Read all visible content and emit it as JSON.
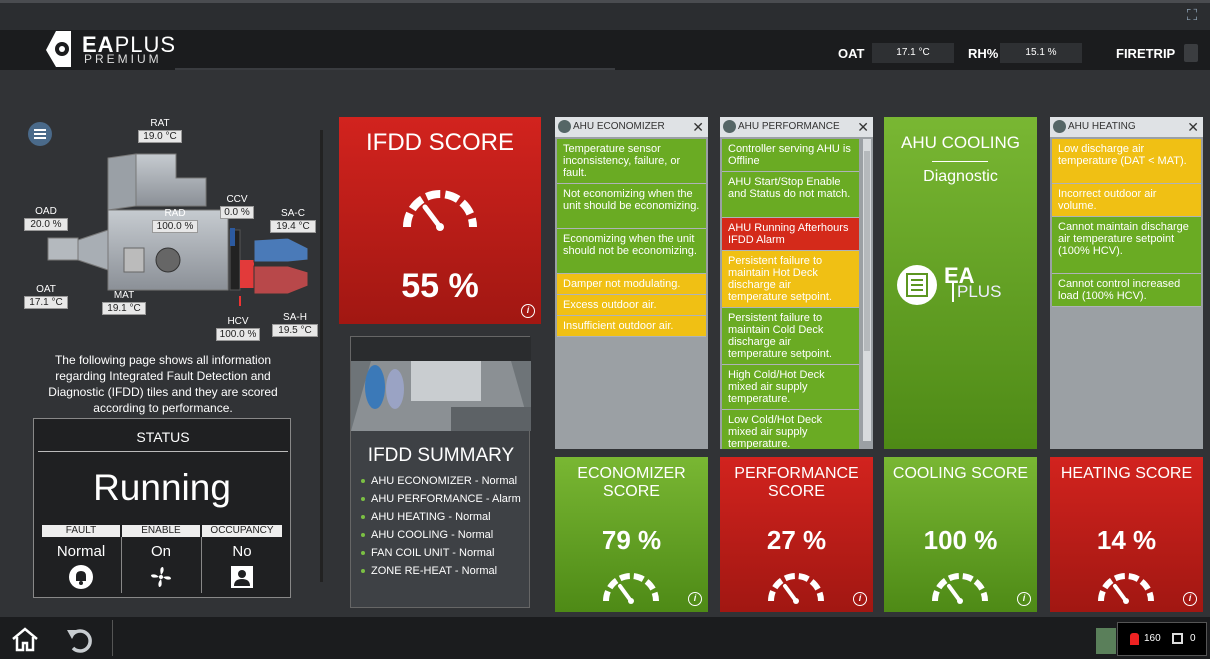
{
  "header": {
    "brand_ea": "EA",
    "brand_plus": "PLUS",
    "brand_sub": "PREMIUM",
    "oat_label": "OAT",
    "oat_value": "17.1 °C",
    "rh_label": "RH%",
    "rh_value": "15.1 %",
    "firetrip_label": "FIRETRIP"
  },
  "diagram": {
    "rat": {
      "label": "RAT",
      "value": "19.0 °C"
    },
    "oad": {
      "label": "OAD",
      "value": "20.0 %"
    },
    "rad": {
      "label": "RAD",
      "value": "100.0 %"
    },
    "ccv": {
      "label": "CCV",
      "value": "0.0 %"
    },
    "sac": {
      "label": "SA-C",
      "value": "19.4 °C"
    },
    "oat": {
      "label": "OAT",
      "value": "17.1 °C"
    },
    "mat": {
      "label": "MAT",
      "value": "19.1 °C"
    },
    "hcv": {
      "label": "HCV",
      "value": "100.0 %"
    },
    "sah": {
      "label": "SA-H",
      "value": "19.5 °C"
    }
  },
  "description": "The following page shows all information regarding Integrated Fault Detection and Diagnostic (IFDD) tiles and they are scored according to performance.",
  "status": {
    "title": "STATUS",
    "state": "Running",
    "fault_label": "FAULT",
    "fault_value": "Normal",
    "enable_label": "ENABLE",
    "enable_value": "On",
    "occupancy_label": "OCCUPANCY",
    "occupancy_value": "No"
  },
  "ifdd_score": {
    "title": "IFDD SCORE",
    "value": "55 %",
    "info": "i"
  },
  "summary": {
    "title": "IFDD SUMMARY",
    "items": [
      "AHU ECONOMIZER - Normal",
      "AHU PERFORMANCE - Alarm",
      "AHU HEATING - Normal",
      "AHU COOLING - Normal",
      "FAN COIL UNIT - Normal",
      "ZONE RE-HEAT - Normal"
    ]
  },
  "economizer_panel": {
    "title": "AHU ECONOMIZER",
    "close": "✕",
    "items": [
      {
        "text": "Temperature sensor inconsistency, failure, or fault.",
        "status": "green"
      },
      {
        "text": "Not economizing when the unit should be economizing.",
        "status": "green"
      },
      {
        "text": "Economizing when the unit should not be economizing.",
        "status": "green"
      },
      {
        "text": "Damper not modulating.",
        "status": "yellow"
      },
      {
        "text": "Excess outdoor air.",
        "status": "yellow"
      },
      {
        "text": "Insufficient outdoor air.",
        "status": "yellow"
      }
    ]
  },
  "performance_panel": {
    "title": "AHU PERFORMANCE",
    "close": "✕",
    "items": [
      {
        "text": "Controller serving AHU is Offline",
        "status": "green"
      },
      {
        "text": "AHU Start/Stop Enable and Status do not match.",
        "status": "green"
      },
      {
        "text": "AHU Running Afterhours IFDD Alarm",
        "status": "red"
      },
      {
        "text": "Persistent failure to maintain Hot Deck discharge air temperature setpoint.",
        "status": "yellow"
      },
      {
        "text": "Persistent failure to maintain Cold Deck discharge air temperature setpoint.",
        "status": "green"
      },
      {
        "text": "High Cold/Hot Deck mixed air supply temperature.",
        "status": "green"
      },
      {
        "text": "Low Cold/Hot Deck mixed air supply temperature.",
        "status": "green"
      }
    ]
  },
  "cooling_tile": {
    "title": "AHU COOLING",
    "subtitle": "Diagnostic",
    "logo_ea": "EA",
    "logo_plus": "PLUS"
  },
  "heating_panel": {
    "title": "AHU HEATING",
    "close": "✕",
    "items": [
      {
        "text": "Low discharge air temperature (DAT < MAT).",
        "status": "yellow"
      },
      {
        "text": "Incorrect outdoor air volume.",
        "status": "yellow"
      },
      {
        "text": "Cannot maintain discharge air temperature setpoint (100% HCV).",
        "status": "green"
      },
      {
        "text": "Cannot control increased load (100% HCV).",
        "status": "green"
      }
    ]
  },
  "scores": {
    "economizer": {
      "title": "ECONOMIZER SCORE",
      "value": "79 %"
    },
    "performance": {
      "title": "PERFORMANCE SCORE",
      "value": "27 %"
    },
    "cooling": {
      "title": "COOLING SCORE",
      "value": "100 %"
    },
    "heating": {
      "title": "HEATING SCORE",
      "value": "14 %"
    }
  },
  "footer": {
    "alarm_count": "160",
    "event_count": "0"
  },
  "colors": {
    "red": "#c41f1a",
    "green": "#6aab23",
    "yellow": "#f0c014",
    "panel_gray": "#9ba0a4"
  }
}
